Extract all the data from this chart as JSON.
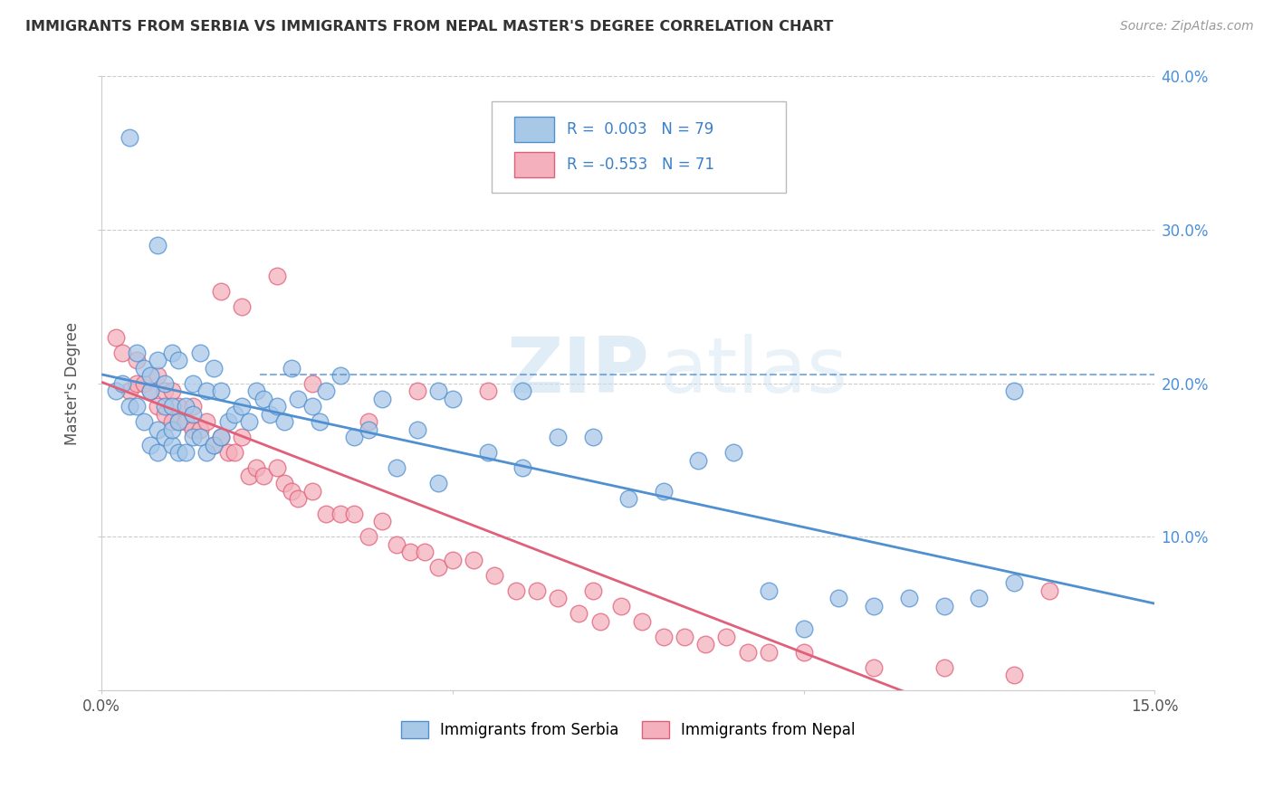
{
  "title": "IMMIGRANTS FROM SERBIA VS IMMIGRANTS FROM NEPAL MASTER'S DEGREE CORRELATION CHART",
  "source": "Source: ZipAtlas.com",
  "xlabel_serbia": "Immigrants from Serbia",
  "xlabel_nepal": "Immigrants from Nepal",
  "ylabel": "Master's Degree",
  "r_serbia": 0.003,
  "n_serbia": 79,
  "r_nepal": -0.553,
  "n_nepal": 71,
  "xlim": [
    0.0,
    0.15
  ],
  "ylim": [
    0.0,
    0.4
  ],
  "color_serbia": "#a8c8e8",
  "color_nepal": "#f4b0bc",
  "line_color_serbia": "#5090d0",
  "line_color_nepal": "#e0607a",
  "watermark_zip": "ZIP",
  "watermark_atlas": "atlas",
  "grid_color": "#cccccc",
  "background_color": "#ffffff",
  "serbia_x": [
    0.002,
    0.003,
    0.004,
    0.005,
    0.005,
    0.006,
    0.006,
    0.007,
    0.007,
    0.007,
    0.008,
    0.008,
    0.008,
    0.009,
    0.009,
    0.009,
    0.01,
    0.01,
    0.01,
    0.01,
    0.011,
    0.011,
    0.011,
    0.012,
    0.012,
    0.013,
    0.013,
    0.013,
    0.014,
    0.014,
    0.015,
    0.015,
    0.016,
    0.016,
    0.017,
    0.017,
    0.018,
    0.019,
    0.02,
    0.021,
    0.022,
    0.023,
    0.024,
    0.025,
    0.026,
    0.027,
    0.028,
    0.03,
    0.031,
    0.032,
    0.034,
    0.036,
    0.038,
    0.04,
    0.042,
    0.045,
    0.048,
    0.05,
    0.055,
    0.06,
    0.065,
    0.07,
    0.075,
    0.08,
    0.085,
    0.09,
    0.095,
    0.1,
    0.105,
    0.11,
    0.115,
    0.12,
    0.125,
    0.13,
    0.048,
    0.06,
    0.13,
    0.004,
    0.008
  ],
  "serbia_y": [
    0.195,
    0.2,
    0.185,
    0.22,
    0.185,
    0.175,
    0.21,
    0.16,
    0.195,
    0.205,
    0.155,
    0.17,
    0.215,
    0.165,
    0.185,
    0.2,
    0.16,
    0.17,
    0.185,
    0.22,
    0.155,
    0.175,
    0.215,
    0.155,
    0.185,
    0.165,
    0.18,
    0.2,
    0.165,
    0.22,
    0.155,
    0.195,
    0.16,
    0.21,
    0.165,
    0.195,
    0.175,
    0.18,
    0.185,
    0.175,
    0.195,
    0.19,
    0.18,
    0.185,
    0.175,
    0.21,
    0.19,
    0.185,
    0.175,
    0.195,
    0.205,
    0.165,
    0.17,
    0.19,
    0.145,
    0.17,
    0.135,
    0.19,
    0.155,
    0.145,
    0.165,
    0.165,
    0.125,
    0.13,
    0.15,
    0.155,
    0.065,
    0.04,
    0.06,
    0.055,
    0.06,
    0.055,
    0.06,
    0.07,
    0.195,
    0.195,
    0.195,
    0.36,
    0.29
  ],
  "nepal_x": [
    0.002,
    0.003,
    0.004,
    0.005,
    0.005,
    0.006,
    0.007,
    0.008,
    0.008,
    0.009,
    0.009,
    0.01,
    0.01,
    0.011,
    0.011,
    0.012,
    0.013,
    0.013,
    0.014,
    0.015,
    0.016,
    0.017,
    0.018,
    0.019,
    0.02,
    0.021,
    0.022,
    0.023,
    0.025,
    0.026,
    0.027,
    0.028,
    0.03,
    0.032,
    0.034,
    0.036,
    0.038,
    0.04,
    0.042,
    0.044,
    0.046,
    0.048,
    0.05,
    0.053,
    0.056,
    0.059,
    0.062,
    0.065,
    0.068,
    0.071,
    0.074,
    0.077,
    0.08,
    0.083,
    0.086,
    0.089,
    0.092,
    0.095,
    0.1,
    0.11,
    0.12,
    0.13,
    0.017,
    0.02,
    0.025,
    0.03,
    0.038,
    0.045,
    0.055,
    0.07,
    0.135
  ],
  "nepal_y": [
    0.23,
    0.22,
    0.195,
    0.2,
    0.215,
    0.2,
    0.195,
    0.185,
    0.205,
    0.18,
    0.195,
    0.175,
    0.195,
    0.175,
    0.185,
    0.175,
    0.17,
    0.185,
    0.17,
    0.175,
    0.16,
    0.165,
    0.155,
    0.155,
    0.165,
    0.14,
    0.145,
    0.14,
    0.145,
    0.135,
    0.13,
    0.125,
    0.13,
    0.115,
    0.115,
    0.115,
    0.1,
    0.11,
    0.095,
    0.09,
    0.09,
    0.08,
    0.085,
    0.085,
    0.075,
    0.065,
    0.065,
    0.06,
    0.05,
    0.045,
    0.055,
    0.045,
    0.035,
    0.035,
    0.03,
    0.035,
    0.025,
    0.025,
    0.025,
    0.015,
    0.015,
    0.01,
    0.26,
    0.25,
    0.27,
    0.2,
    0.175,
    0.195,
    0.195,
    0.065,
    0.065
  ]
}
